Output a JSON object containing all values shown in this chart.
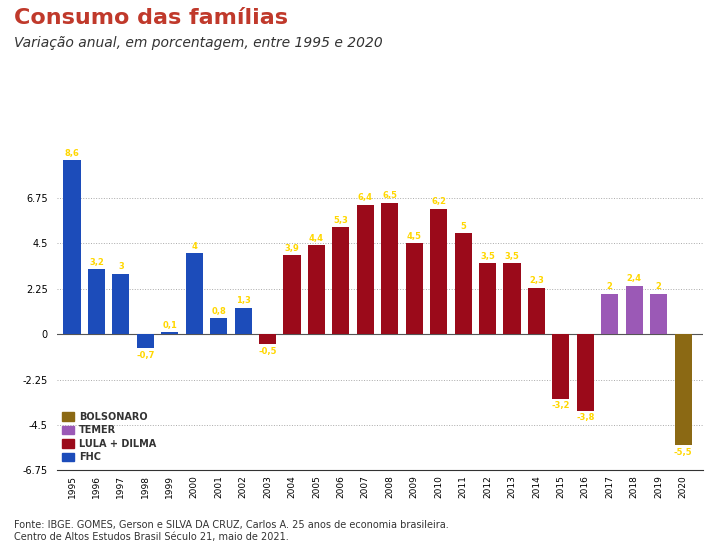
{
  "title": "Consumo das famílias",
  "subtitle": "Variação anual, em porcentagem, entre 1995 e 2020",
  "years": [
    1995,
    1996,
    1997,
    1998,
    1999,
    2000,
    2001,
    2002,
    2003,
    2004,
    2005,
    2006,
    2007,
    2008,
    2009,
    2010,
    2011,
    2012,
    2013,
    2014,
    2015,
    2016,
    2017,
    2018,
    2019,
    2020
  ],
  "values": [
    8.6,
    3.2,
    3.0,
    -0.7,
    0.1,
    4.0,
    0.8,
    1.3,
    -0.5,
    3.9,
    4.4,
    5.3,
    6.4,
    6.5,
    4.5,
    6.2,
    5.0,
    3.5,
    3.5,
    2.3,
    -3.2,
    -3.8,
    2.0,
    2.4,
    2.0,
    -5.5
  ],
  "bar_colors": [
    "#1c4cba",
    "#1c4cba",
    "#1c4cba",
    "#1c4cba",
    "#1c4cba",
    "#1c4cba",
    "#1c4cba",
    "#1c4cba",
    "#9b0a1a",
    "#9b0a1a",
    "#9b0a1a",
    "#9b0a1a",
    "#9b0a1a",
    "#9b0a1a",
    "#9b0a1a",
    "#9b0a1a",
    "#9b0a1a",
    "#9b0a1a",
    "#9b0a1a",
    "#9b0a1a",
    "#9b0a1a",
    "#9b0a1a",
    "#9b59b6",
    "#9b59b6",
    "#9b59b6",
    "#8B6914"
  ],
  "label_color": "#FFD700",
  "ylim": [
    -6.75,
    9.5
  ],
  "yticks": [
    -6.75,
    -4.5,
    -2.25,
    0,
    2.25,
    4.5,
    6.75
  ],
  "source": "Fonte: IBGE. GOMES, Gerson e SILVA DA CRUZ, Carlos A. 25 anos de economia brasileira.\nCentro de Altos Estudos Brasil Século 21, maio de 2021.",
  "legend": [
    {
      "label": "BOLSONARO",
      "color": "#8B6914"
    },
    {
      "label": "TEMER",
      "color": "#9b59b6"
    },
    {
      "label": "LULA + DILMA",
      "color": "#9b0a1a"
    },
    {
      "label": "FHC",
      "color": "#1c4cba"
    }
  ],
  "background_color": "#ffffff",
  "grid_color": "#aaaaaa",
  "title_color": "#c0392b",
  "subtitle_color": "#333333"
}
